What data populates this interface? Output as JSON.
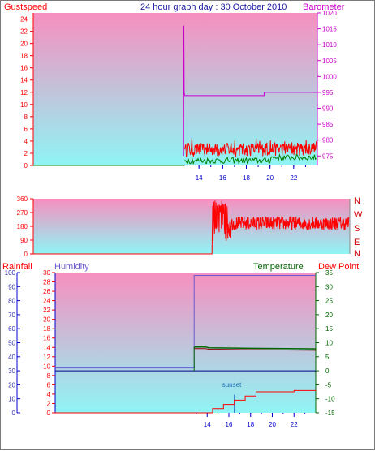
{
  "title": "24 hour graph day : 30 October 2010",
  "colors": {
    "gust": "#ff0000",
    "wind_avg": "#008000",
    "barometer": "#cc00cc",
    "direction": "#ff0000",
    "rainfall": "#ff0000",
    "humidity": "#6a5acd",
    "temperature": "#006400",
    "dewpoint": "#8b0000",
    "gradient_top": "#f78fbf",
    "gradient_bottom": "#8ff5f5"
  },
  "chart_data": [
    {
      "type": "line",
      "labels": {
        "left": "Gustspeed",
        "right": "Barometer"
      },
      "x_ticks": [
        "14",
        "16",
        "18",
        "20",
        "22"
      ],
      "xlim": [
        0,
        24
      ],
      "y_left": {
        "min": 0,
        "max": 25,
        "ticks": [
          0,
          2,
          4,
          6,
          8,
          10,
          12,
          14,
          16,
          18,
          20,
          22,
          24
        ]
      },
      "y_right": {
        "min": 972,
        "max": 1020,
        "ticks": [
          975,
          980,
          985,
          990,
          995,
          1000,
          1005,
          1010,
          1015,
          1020
        ]
      },
      "series": {
        "gust": {
          "x": [
            0,
            12.8,
            12.8,
            24
          ],
          "values": [
            0,
            0,
            2.5,
            2.5
          ]
        },
        "barometer": {
          "x": [
            12.7,
            12.72,
            12.75,
            12.8,
            19.5,
            19.5,
            24
          ],
          "values": [
            975,
            1016,
            995,
            994,
            994,
            995,
            995
          ]
        },
        "wind_avg": {
          "x": [
            0,
            12.8,
            24
          ],
          "values": [
            0,
            0,
            0.8
          ]
        }
      }
    },
    {
      "type": "line",
      "labels": {
        "right_compass": [
          "N",
          "W",
          "S",
          "E",
          "N"
        ]
      },
      "xlim": [
        0,
        24
      ],
      "y_left": {
        "min": 0,
        "max": 360,
        "ticks": [
          0,
          90,
          180,
          270,
          360
        ]
      },
      "series": {
        "direction": {
          "x": [
            0,
            13.55,
            14.0,
            24
          ],
          "values": [
            0,
            0,
            210,
            190
          ]
        }
      }
    },
    {
      "type": "line",
      "labels": {
        "rainfall": "Rainfall",
        "humidity": "Humidity",
        "temperature": "Temperature",
        "dewpoint": "Dew Point",
        "annotation": "sunset"
      },
      "x_ticks": [
        "14",
        "16",
        "18",
        "20",
        "22"
      ],
      "xlim": [
        0,
        24
      ],
      "y_rain": {
        "min": 0,
        "max": 100,
        "ticks": [
          0,
          10,
          20,
          30,
          40,
          50,
          60,
          70,
          80,
          90,
          100
        ]
      },
      "y_humidity": {
        "min": 0,
        "max": 30,
        "ticks": [
          0,
          2,
          4,
          6,
          8,
          10,
          12,
          14,
          16,
          18,
          20,
          22,
          24,
          26,
          28,
          30
        ]
      },
      "y_temp": {
        "min": -15,
        "max": 35,
        "ticks": [
          -15,
          -10,
          -5,
          0,
          5,
          10,
          15,
          20,
          25,
          30,
          35
        ]
      },
      "sunset_hour": 16.5,
      "series": {
        "humidity": {
          "x": [
            0,
            12.8,
            12.8,
            24
          ],
          "values": [
            9.6,
            9.6,
            29.4,
            29.4
          ]
        },
        "temperature": {
          "x": [
            12.8,
            13.8,
            14.2,
            18,
            24
          ],
          "values": [
            8.5,
            8.5,
            8.2,
            8.0,
            7.8
          ]
        },
        "dewpoint": {
          "x": [
            12.8,
            13.8,
            14.2,
            18,
            24
          ],
          "values": [
            7.9,
            7.9,
            7.7,
            7.5,
            7.3
          ]
        },
        "rainfall": {
          "x": [
            0,
            14.5,
            14.5,
            15.5,
            15.5,
            16.5,
            16.5,
            17.5,
            17.5,
            18.5,
            18.5,
            22,
            22,
            24
          ],
          "values": [
            0,
            0,
            3,
            3,
            6,
            6,
            9,
            9,
            12,
            12,
            15,
            15,
            16,
            16
          ]
        },
        "zero_line": {
          "x": [
            0,
            24
          ],
          "values": [
            0,
            0
          ]
        }
      }
    }
  ]
}
